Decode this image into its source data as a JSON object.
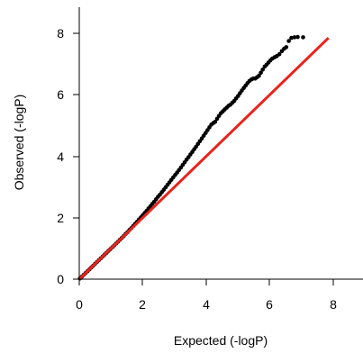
{
  "chart_data": {
    "type": "scatter",
    "title": "",
    "xlabel": "Expected (-logP)",
    "ylabel": "Observed (-logP)",
    "xlim": [
      0,
      8.5
    ],
    "ylim": [
      0,
      8.5
    ],
    "x_ticks": [
      0,
      2,
      4,
      6,
      8
    ],
    "y_ticks": [
      0,
      2,
      4,
      6,
      8
    ],
    "x_tick_labels": [
      "0",
      "2",
      "4",
      "6",
      "8"
    ],
    "y_tick_labels": [
      "0",
      "2",
      "4",
      "6",
      "8"
    ],
    "grid": false,
    "series": [
      {
        "kind": "points",
        "color": "#000000",
        "x": [
          0.02,
          0.08,
          0.14,
          0.2,
          0.26,
          0.32,
          0.38,
          0.44,
          0.5,
          0.56,
          0.62,
          0.68,
          0.74,
          0.8,
          0.86,
          0.92,
          0.98,
          1.04,
          1.1,
          1.16,
          1.22,
          1.28,
          1.34,
          1.4,
          1.46,
          1.52,
          1.58,
          1.64,
          1.7,
          1.76,
          1.82,
          1.88,
          1.94,
          2.0,
          2.06,
          2.12,
          2.18,
          2.24,
          2.3,
          2.36,
          2.42,
          2.48,
          2.54,
          2.6,
          2.66,
          2.72,
          2.78,
          2.84,
          2.9,
          2.96,
          3.02,
          3.08,
          3.14,
          3.2,
          3.26,
          3.32,
          3.38,
          3.44,
          3.5,
          3.56,
          3.62,
          3.68,
          3.74,
          3.8,
          3.86,
          3.92,
          3.98,
          4.04,
          4.1,
          4.16,
          4.22,
          4.28,
          4.34,
          4.4,
          4.46,
          4.52,
          4.58,
          4.64,
          4.7,
          4.76,
          4.82,
          4.88,
          4.94,
          5.0,
          5.06,
          5.12,
          5.18,
          5.24,
          5.3,
          5.36,
          5.42,
          5.48,
          5.54,
          5.6,
          5.66,
          5.72,
          5.78,
          5.84,
          5.9,
          5.96,
          6.02,
          6.08,
          6.15,
          6.22,
          6.3,
          6.38,
          6.45,
          6.52,
          6.6,
          6.68,
          6.78,
          6.88,
          7.05
        ],
        "y": [
          0.02,
          0.08,
          0.14,
          0.2,
          0.26,
          0.32,
          0.38,
          0.44,
          0.5,
          0.56,
          0.62,
          0.68,
          0.74,
          0.8,
          0.86,
          0.92,
          0.98,
          1.04,
          1.1,
          1.16,
          1.22,
          1.28,
          1.34,
          1.4,
          1.47,
          1.53,
          1.6,
          1.66,
          1.73,
          1.8,
          1.87,
          1.94,
          2.01,
          2.08,
          2.15,
          2.22,
          2.3,
          2.37,
          2.45,
          2.52,
          2.6,
          2.68,
          2.75,
          2.83,
          2.91,
          2.99,
          3.07,
          3.15,
          3.23,
          3.31,
          3.39,
          3.47,
          3.55,
          3.63,
          3.72,
          3.8,
          3.89,
          3.97,
          4.06,
          4.14,
          4.23,
          4.31,
          4.4,
          4.49,
          4.58,
          4.67,
          4.76,
          4.85,
          4.94,
          5.03,
          5.08,
          5.12,
          5.22,
          5.31,
          5.4,
          5.46,
          5.52,
          5.58,
          5.64,
          5.68,
          5.74,
          5.8,
          5.88,
          5.96,
          6.05,
          6.14,
          6.22,
          6.3,
          6.38,
          6.45,
          6.5,
          6.53,
          6.53,
          6.57,
          6.62,
          6.72,
          6.82,
          6.92,
          6.98,
          7.05,
          7.12,
          7.18,
          7.22,
          7.26,
          7.32,
          7.42,
          7.5,
          7.55,
          7.75,
          7.85,
          7.87,
          7.88,
          7.87
        ]
      },
      {
        "kind": "line",
        "color": "#e8231c",
        "x": [
          0,
          7.85
        ],
        "y": [
          0,
          7.85
        ]
      }
    ]
  }
}
